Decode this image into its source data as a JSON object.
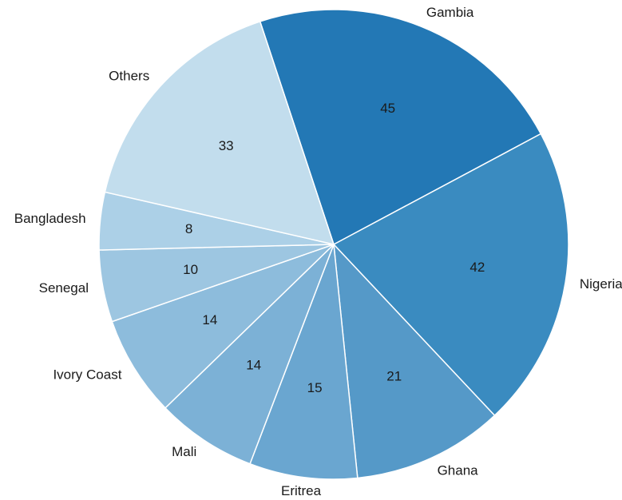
{
  "chart_data": {
    "type": "pie",
    "title": "",
    "slices": [
      {
        "label": "Gambia",
        "value": 45,
        "color": "#2378b5"
      },
      {
        "label": "Nigeria",
        "value": 42,
        "color": "#3a8bc0"
      },
      {
        "label": "Ghana",
        "value": 21,
        "color": "#5599c8"
      },
      {
        "label": "Eritrea",
        "value": 15,
        "color": "#6aa6d0"
      },
      {
        "label": "Mali",
        "value": 14,
        "color": "#7cb1d6"
      },
      {
        "label": "Ivory Coast",
        "value": 14,
        "color": "#8dbcdc"
      },
      {
        "label": "Senegal",
        "value": 10,
        "color": "#9dc6e1"
      },
      {
        "label": "Bangladesh",
        "value": 8,
        "color": "#acd0e7"
      },
      {
        "label": "Others",
        "value": 33,
        "color": "#c2dded"
      }
    ]
  }
}
